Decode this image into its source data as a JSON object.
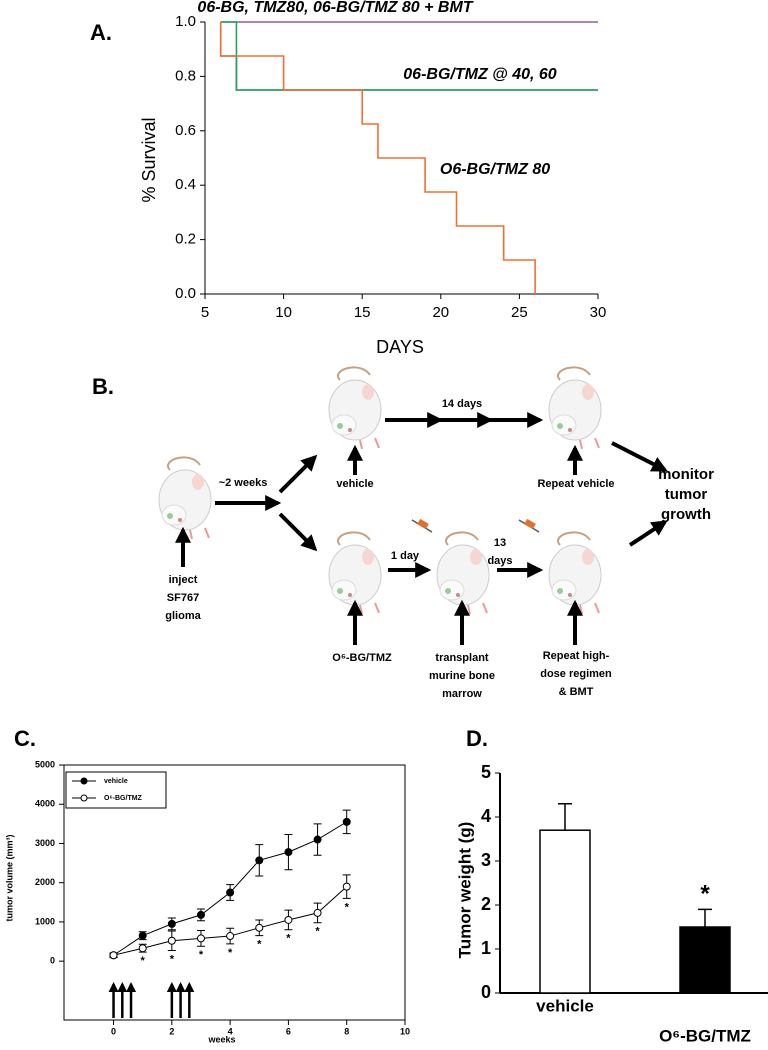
{
  "chart_data": [
    {
      "type": "line",
      "panel": "A.",
      "x_label": "DAYS",
      "y_label": "% Survival",
      "xlim": [
        5,
        30
      ],
      "xticks": [
        5,
        10,
        15,
        20,
        25,
        30
      ],
      "ylim": [
        0,
        1
      ],
      "yticks": [
        {
          "value": 0,
          "label": "0.0"
        },
        {
          "value": 0.2,
          "label": "0.2"
        },
        {
          "value": 0.4,
          "label": "0.4"
        },
        {
          "value": 0.6,
          "label": "0.6"
        },
        {
          "value": 0.8,
          "label": "0.8"
        },
        {
          "value": 1,
          "label": "1.0"
        }
      ],
      "series": [
        {
          "color": "#8e5ea2",
          "x": [
            6,
            30
          ],
          "values": [
            1,
            1
          ]
        },
        {
          "color": "#4a6fb5",
          "x": [
            6,
            6,
            7,
            7,
            30
          ],
          "values": [
            1,
            0.875,
            0.875,
            0.75,
            0.75
          ]
        },
        {
          "color": "#2ca05a",
          "x": [
            6,
            7,
            7,
            30
          ],
          "values": [
            1,
            1,
            0.75,
            0.75
          ]
        },
        {
          "color": "#f07030",
          "x": [
            6,
            6,
            10,
            10,
            15,
            15,
            16,
            16,
            19,
            19,
            21,
            21,
            24,
            24,
            26,
            26
          ],
          "values": [
            1,
            0.875,
            0.875,
            0.75,
            0.75,
            0.625,
            0.625,
            0.5,
            0.5,
            0.375,
            0.375,
            0.25,
            0.25,
            0.125,
            0.125,
            0
          ]
        }
      ],
      "annotations": [
        "06-BG, TMZ80, 06-BG/TMZ 80 + BMT",
        "06-BG/TMZ @ 40, 60",
        "O6-BG/TMZ 80"
      ]
    },
    {
      "type": "line",
      "panel": "C.",
      "x_label": "weeks",
      "y_label": "tumor volume (mm³)",
      "xlim": [
        -1.7,
        10
      ],
      "xticks": [
        0,
        2,
        4,
        6,
        8,
        10
      ],
      "ylim": [
        -1500,
        5000
      ],
      "yticks": [
        0,
        1000,
        2000,
        3000,
        4000,
        5000
      ],
      "x": [
        0,
        1,
        2,
        3,
        4,
        5,
        6,
        7,
        8
      ],
      "series": [
        {
          "name": "vehicle",
          "color": "#000000",
          "marker": "filled",
          "values": [
            150,
            650,
            950,
            1180,
            1750,
            2570,
            2780,
            3100,
            3550
          ],
          "errors": [
            60,
            100,
            150,
            150,
            200,
            400,
            450,
            400,
            300
          ]
        },
        {
          "name": "O⁶-BG/TMZ",
          "color": "#000000",
          "marker": "open",
          "values": [
            150,
            330,
            520,
            580,
            640,
            850,
            1050,
            1230,
            1900
          ],
          "errors": [
            50,
            100,
            250,
            200,
            200,
            200,
            250,
            250,
            300
          ]
        }
      ],
      "annotations": [
        {
          "text": "*",
          "x": 1
        },
        {
          "text": "*",
          "x": 2
        },
        {
          "text": "*",
          "x": 3
        },
        {
          "text": "*",
          "x": 4
        },
        {
          "text": "*",
          "x": 5
        },
        {
          "text": "*",
          "x": 6
        },
        {
          "text": "*",
          "x": 7
        },
        {
          "text": "*",
          "x": 8
        }
      ],
      "dosing_weeks": [
        0,
        0.3,
        0.6,
        2,
        2.3,
        2.6
      ]
    },
    {
      "type": "bar",
      "panel": "D.",
      "y_label": "Tumor weight (g)",
      "ylim": [
        0,
        5
      ],
      "yticks": [
        0,
        1,
        2,
        3,
        4,
        5
      ],
      "categories": [
        "vehicle",
        "O⁶-BG/TMZ"
      ],
      "values": [
        3.7,
        1.5
      ],
      "errors": [
        0.6,
        0.4
      ],
      "colors": [
        "#ffffff",
        "#000000"
      ],
      "annotations": [
        {
          "text": "*",
          "category": 1
        }
      ]
    }
  ],
  "diagram": {
    "panel": "B.",
    "labels": [
      [
        "~2 weeks"
      ],
      [
        "vehicle"
      ],
      [
        "14  days"
      ],
      [
        "Repeat vehicle"
      ],
      [
        "monitor",
        "tumor",
        "growth"
      ],
      [
        "inject",
        "SF767",
        "glioma"
      ],
      [
        "O⁶-BG/TMZ"
      ],
      [
        "1 day"
      ],
      [
        "13",
        "days"
      ],
      [
        "transplant",
        "murine bone",
        "marrow"
      ],
      [
        "Repeat high-",
        "dose regimen",
        "& BMT"
      ]
    ]
  }
}
